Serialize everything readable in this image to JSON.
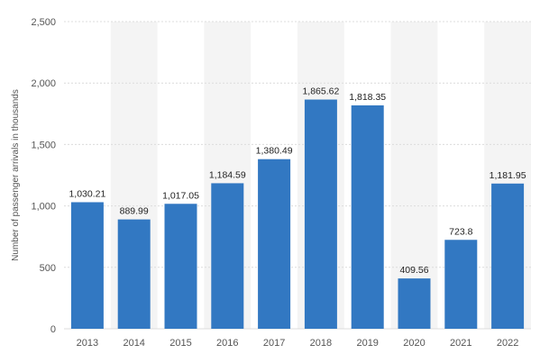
{
  "chart_data": {
    "type": "bar",
    "categories": [
      "2013",
      "2014",
      "2015",
      "2016",
      "2017",
      "2018",
      "2019",
      "2020",
      "2021",
      "2022"
    ],
    "values": [
      1030.21,
      889.99,
      1017.05,
      1184.59,
      1380.49,
      1865.62,
      1818.35,
      409.56,
      723.8,
      1181.95
    ],
    "value_labels": [
      "1,030.21",
      "889.99",
      "1,017.05",
      "1,184.59",
      "1,380.49",
      "1,865.62",
      "1,818.35",
      "409.56",
      "723.8",
      "1,181.95"
    ],
    "ylabel": "Number of passenger arrivals in thousands",
    "ylim": [
      0,
      2500
    ],
    "yticks": [
      0,
      500,
      1000,
      1500,
      2000,
      2500
    ],
    "ytick_labels": [
      "0",
      "500",
      "1,000",
      "1,500",
      "2,000",
      "2,500"
    ],
    "grid": true,
    "bar_color": "#3278c2",
    "band_color": "#f4f4f4",
    "grid_color": "#dcdcdc"
  }
}
